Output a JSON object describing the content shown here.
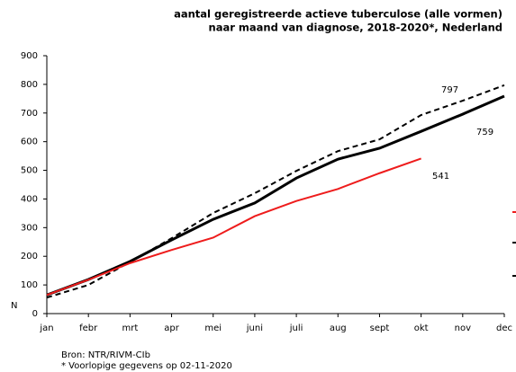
{
  "chart_data": {
    "type": "line",
    "title": [
      "aantal geregistreerde actieve tuberculose (alle vormen)",
      "naar maand van diagnose, 2018-2020*, Nederland"
    ],
    "ylabel": "N",
    "categories": [
      "jan",
      "febr",
      "mrt",
      "apr",
      "mei",
      "juni",
      "juli",
      "aug",
      "sept",
      "okt",
      "nov",
      "dec"
    ],
    "series": [
      {
        "color": "#000000",
        "dashed": true,
        "values": [
          56,
          100,
          180,
          263,
          351,
          420,
          498,
          567,
          608,
          693,
          743,
          797
        ],
        "label_index": 11
      },
      {
        "color": "#000000",
        "dashed": false,
        "values": [
          65,
          119,
          182,
          257,
          329,
          386,
          473,
          539,
          577,
          636,
          696,
          759
        ],
        "label_index": 11
      },
      {
        "color": "#ee1c1c",
        "dashed": false,
        "values": [
          65,
          118,
          176,
          222,
          265,
          340,
          393,
          435,
          490,
          541,
          null,
          null
        ],
        "label_index": 9
      }
    ],
    "ylim": [
      0,
      900
    ],
    "yticks": [
      0,
      100,
      200,
      300,
      400,
      500,
      600,
      700,
      800,
      900
    ],
    "grid": false,
    "notes": [
      "Bron: NTR/RIVM-CIb",
      "* Voorlopige gegevens op 02-11-2020"
    ]
  }
}
